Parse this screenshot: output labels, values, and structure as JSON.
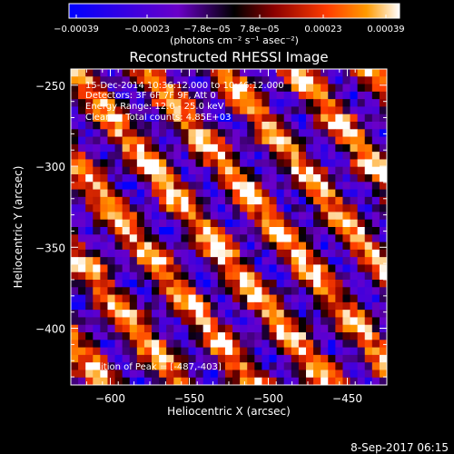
{
  "chart_data": {
    "type": "heatmap",
    "title": "Reconstructed RHESSI Image",
    "xlabel": "Heliocentric X (arcsec)",
    "ylabel": "Heliocentric Y (arcsec)",
    "xlim": [
      -625,
      -425
    ],
    "ylim": [
      -435,
      -240
    ],
    "x_ticks": [
      -600,
      -550,
      -500,
      -450
    ],
    "x_tick_labels": [
      "−600",
      "−550",
      "−500",
      "−450"
    ],
    "y_ticks": [
      -250,
      -300,
      -350,
      -400
    ],
    "y_tick_labels": [
      "−250",
      "−300",
      "−350",
      "−400"
    ],
    "colorbar": {
      "range": [
        -0.00039,
        0.00039
      ],
      "tick_labels": [
        "−0.00039",
        "−0.00023",
        "−7.8e−05",
        "7.8e−05",
        "0.00023",
        "0.00039"
      ],
      "units": "(photons cm⁻² s⁻¹ asec⁻²)",
      "colors": [
        "#0000ff",
        "#6a00c8",
        "#000000",
        "#8b0000",
        "#ff3c00",
        "#ff9a00",
        "#ffffff"
      ]
    },
    "grid": false,
    "annotations": {
      "time_range": "15-Dec-2014 10:36:12.000 to 10:46:12.000",
      "detectors": "Detectors: 3F 6F 7F 9F, Att 0",
      "energy": "Energy Range: 12.0 - 25.0 keV",
      "method": "Clean     Total counts: 4.85E+03",
      "peak": "Position of Peak = [-487,-403]"
    },
    "peak": [
      -487,
      -403
    ],
    "pattern": "diagonal fringe stripes, upper-left to lower-right, with noise",
    "grid_size": [
      43,
      42
    ]
  },
  "footer": {
    "timestamp": "8-Sep-2017 06:15"
  }
}
